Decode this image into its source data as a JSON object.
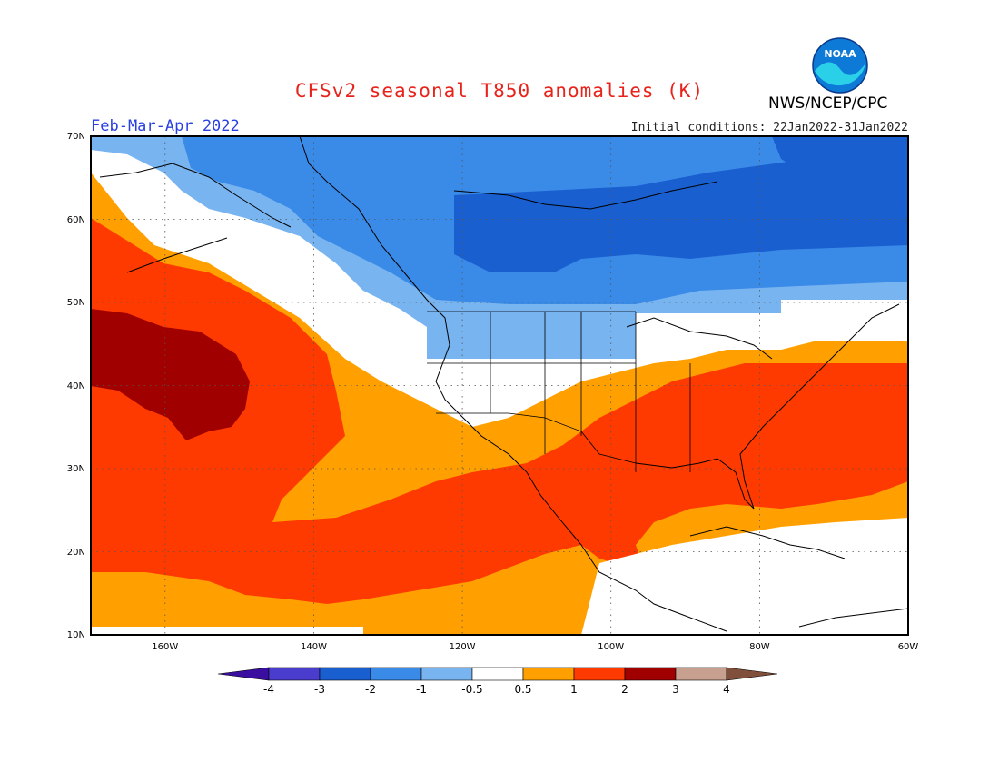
{
  "title": "CFSv2 seasonal T850 anomalies (K)",
  "agency": "NWS/NCEP/CPC",
  "logo_text": "NOAA",
  "period": "Feb-Mar-Apr 2022",
  "initial_conditions": "Initial conditions: 22Jan2022-31Jan2022",
  "map": {
    "projection": "lat-lon",
    "lon_range": [
      -170,
      -60
    ],
    "lat_range": [
      10,
      70
    ],
    "lat_ticks": [
      "10N",
      "20N",
      "30N",
      "40N",
      "50N",
      "60N",
      "70N"
    ],
    "lon_ticks": [
      "160W",
      "140W",
      "120W",
      "100W",
      "80W",
      "60W"
    ],
    "grid": "dotted"
  },
  "colorbar": {
    "labels": [
      "-4",
      "-3",
      "-2",
      "-1",
      "-0.5",
      "0.5",
      "1",
      "2",
      "3",
      "4"
    ],
    "colors": [
      "#3a0fa0",
      "#4a3ccd",
      "#1a5fd0",
      "#3a8ae8",
      "#78b4f0",
      "#ffffff",
      "#ffa000",
      "#ff3a00",
      "#a00000",
      "#c8a090",
      "#80503c"
    ]
  },
  "colors": {
    "title": "#e8231b",
    "period": "#2a3fe0"
  }
}
